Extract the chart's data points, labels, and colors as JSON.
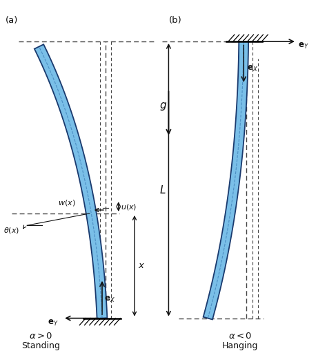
{
  "fig_width": 4.74,
  "fig_height": 5.08,
  "dpi": 100,
  "beam_color_fill": "#7abfe8",
  "beam_color_edge": "#1a3a6e",
  "dashed_color": "#444444",
  "arrow_color": "#111111",
  "text_color": "#111111",
  "label_a": "(a)",
  "label_b": "(b)",
  "label_ex_a": "$\\mathbf{e}_{X}$",
  "label_ey_a": "$\\mathbf{e}_{Y}$",
  "label_ex_b": "$\\mathbf{e}_{X}$",
  "label_ey_b": "$\\mathbf{e}_{Y}$",
  "label_wx": "$w(x)$",
  "label_ux": "$u(x)$",
  "label_theta": "$\\theta(x)$",
  "label_x": "$x$",
  "label_L": "$L$",
  "label_g": "$g$",
  "alpha_a": "$\\alpha > 0$",
  "alpha_b": "$\\alpha < 0$",
  "standing": "Standing",
  "hanging": "Hanging"
}
